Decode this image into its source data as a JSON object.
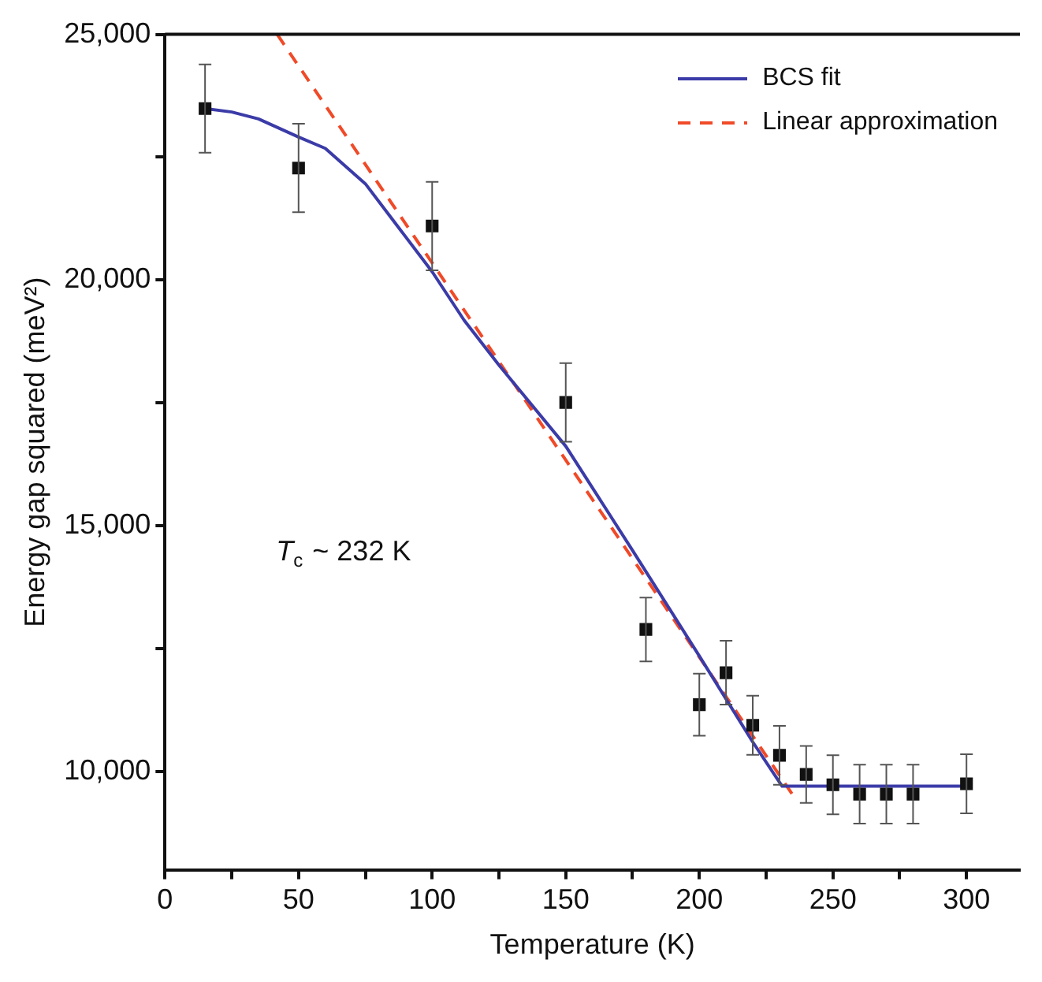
{
  "chart_data": {
    "type": "scatter",
    "xlabel": "Temperature (K)",
    "ylabel": "Energy gap squared (meV²)",
    "annotations": [
      "T$_{c}$ ~ 232 K"
    ],
    "xlim": [
      0,
      320
    ],
    "xticks": [
      0,
      {
        "value": 25,
        "label": null
      },
      50,
      {
        "value": 75,
        "label": null
      },
      100,
      {
        "value": 125,
        "label": null
      },
      150,
      {
        "value": 175,
        "label": null
      },
      200,
      {
        "value": 225,
        "label": null
      },
      250,
      {
        "value": 275,
        "label": null
      },
      300
    ],
    "ylim": [
      8000,
      25000
    ],
    "yticks": [
      {
        "value": 10000,
        "label": "10,000"
      },
      {
        "value": 12500,
        "label": null
      },
      {
        "value": 15000,
        "label": "15,000"
      },
      {
        "value": 17500,
        "label": null
      },
      {
        "value": 20000,
        "label": "20,000"
      },
      {
        "value": 22500,
        "label": null
      },
      {
        "value": 25000,
        "label": "25,000"
      }
    ],
    "grid": false,
    "legend": "top right",
    "series": [
      {
        "type": "scatter",
        "color": "#111111",
        "marker": "square",
        "x": [
          15,
          50,
          100,
          150,
          180,
          200,
          210,
          220,
          230,
          240,
          250,
          260,
          270,
          280,
          300
        ],
        "values": [
          23490,
          22280,
          21100,
          17510,
          12890,
          11360,
          12010,
          10940,
          10330,
          9940,
          9730,
          9540,
          9540,
          9540,
          9750
        ],
        "errors": [
          900,
          900,
          900,
          800,
          650,
          630,
          650,
          600,
          600,
          580,
          600,
          600,
          600,
          600,
          600
        ]
      },
      {
        "type": "line",
        "name": "BCS fit",
        "color": "#3b3ba8",
        "marker": "none",
        "line_style": "solid",
        "x": [
          15,
          25,
          35,
          50,
          60,
          75,
          87,
          100,
          112,
          125,
          150,
          175,
          200,
          220,
          231,
          300
        ],
        "values": [
          23490,
          23420,
          23280,
          22910,
          22680,
          21960,
          21100,
          20170,
          19180,
          18270,
          16620,
          14500,
          12350,
          10600,
          9700,
          9700
        ]
      },
      {
        "type": "line",
        "name": "Linear approximation",
        "color": "#f04a28",
        "marker": "none",
        "line_style": "dashed",
        "x": [
          42,
          235
        ],
        "values": [
          25000,
          9520
        ]
      }
    ]
  }
}
